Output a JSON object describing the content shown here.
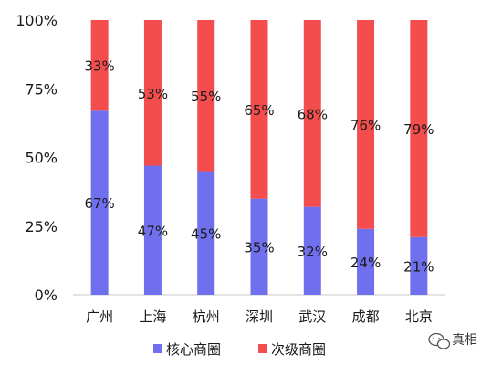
{
  "chart_data": {
    "type": "bar",
    "stacked": true,
    "categories": [
      "广州",
      "上海",
      "杭州",
      "深圳",
      "武汉",
      "成都",
      "北京"
    ],
    "series": [
      {
        "name": "核心商圈",
        "values": [
          67,
          47,
          45,
          35,
          32,
          24,
          21
        ],
        "color": "#7070ee"
      },
      {
        "name": "次级商圈",
        "values": [
          33,
          53,
          55,
          65,
          68,
          76,
          79
        ],
        "color": "#f44d4d"
      }
    ],
    "yticks": [
      "0%",
      "25%",
      "50%",
      "75%",
      "100%"
    ],
    "ylim": [
      0,
      100
    ],
    "grid": false,
    "legend_position": "bottom"
  },
  "watermark": {
    "text": "真相"
  }
}
